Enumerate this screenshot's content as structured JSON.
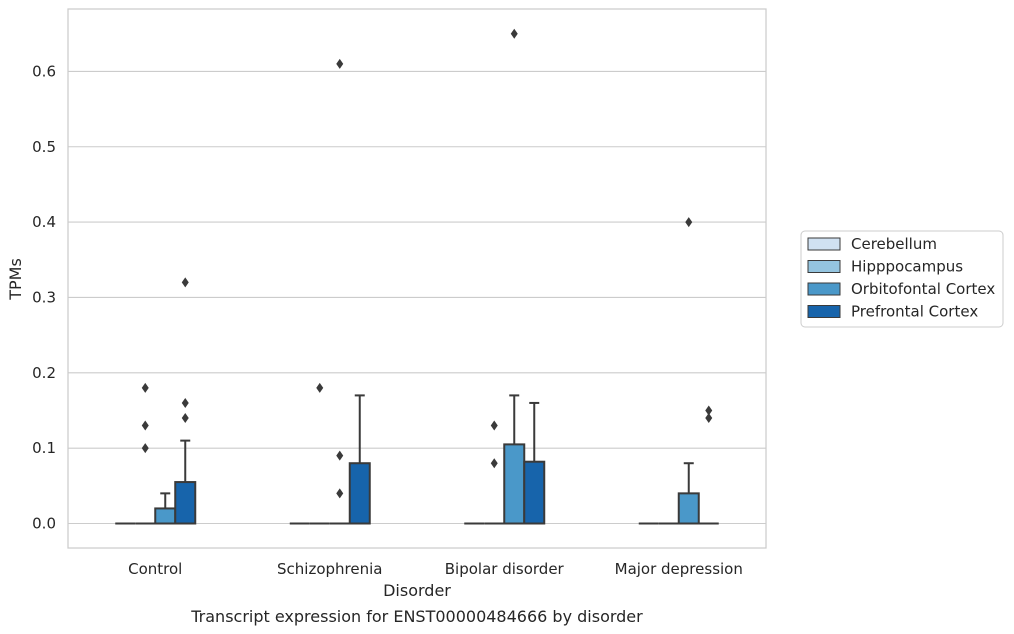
{
  "chart_data": {
    "type": "box",
    "xlabel": "Disorder",
    "ylabel": "TPMs",
    "caption": "Transcript expression for ENST00000484666 by disorder",
    "categories": [
      "Control",
      "Schizophrenia",
      "Bipolar disorder",
      "Major depression"
    ],
    "ylim": [
      -0.032,
      0.685
    ],
    "yticks": [
      0.0,
      0.1,
      0.2,
      0.3,
      0.4,
      0.5,
      0.6
    ],
    "ytick_labels": [
      "0.0",
      "0.1",
      "0.2",
      "0.3",
      "0.4",
      "0.5",
      "0.6"
    ],
    "grid": "horizontal",
    "legend_position": "center-right",
    "series": [
      {
        "name": "Cerebellum",
        "color": "#d0e1f2",
        "boxes": [
          {
            "q1": 0,
            "median": 0,
            "q3": 0,
            "whisker_low": 0,
            "whisker_high": 0,
            "outliers": []
          },
          {
            "q1": 0,
            "median": 0,
            "q3": 0,
            "whisker_low": 0,
            "whisker_high": 0,
            "outliers": []
          },
          {
            "q1": 0,
            "median": 0,
            "q3": 0,
            "whisker_low": 0,
            "whisker_high": 0,
            "outliers": []
          },
          {
            "q1": 0,
            "median": 0,
            "q3": 0,
            "whisker_low": 0,
            "whisker_high": 0,
            "outliers": []
          }
        ]
      },
      {
        "name": "Hipppocampus",
        "color": "#94c4df",
        "boxes": [
          {
            "q1": 0,
            "median": 0,
            "q3": 0,
            "whisker_low": 0,
            "whisker_high": 0,
            "outliers": [
              0.1,
              0.13,
              0.18
            ]
          },
          {
            "q1": 0,
            "median": 0,
            "q3": 0,
            "whisker_low": 0,
            "whisker_high": 0,
            "outliers": [
              0.18
            ]
          },
          {
            "q1": 0,
            "median": 0,
            "q3": 0,
            "whisker_low": 0,
            "whisker_high": 0,
            "outliers": [
              0.08,
              0.13
            ]
          },
          {
            "q1": 0,
            "median": 0,
            "q3": 0,
            "whisker_low": 0,
            "whisker_high": 0,
            "outliers": []
          }
        ]
      },
      {
        "name": "Orbitofontal Cortex",
        "color": "#4a98c9",
        "boxes": [
          {
            "q1": 0,
            "median": 0,
            "q3": 0.02,
            "whisker_low": 0,
            "whisker_high": 0.04,
            "outliers": []
          },
          {
            "q1": 0,
            "median": 0,
            "q3": 0,
            "whisker_low": 0,
            "whisker_high": 0,
            "outliers": [
              0.04,
              0.09,
              0.61
            ]
          },
          {
            "q1": 0,
            "median": 0,
            "q3": 0.105,
            "whisker_low": 0,
            "whisker_high": 0.17,
            "outliers": [
              0.65
            ]
          },
          {
            "q1": 0,
            "median": 0,
            "q3": 0.04,
            "whisker_low": 0,
            "whisker_high": 0.08,
            "outliers": [
              0.4
            ]
          }
        ]
      },
      {
        "name": "Prefrontal Cortex",
        "color": "#1764ab",
        "boxes": [
          {
            "q1": 0,
            "median": 0,
            "q3": 0.055,
            "whisker_low": 0,
            "whisker_high": 0.11,
            "outliers": [
              0.14,
              0.16,
              0.32
            ]
          },
          {
            "q1": 0,
            "median": 0,
            "q3": 0.08,
            "whisker_low": 0,
            "whisker_high": 0.17,
            "outliers": []
          },
          {
            "q1": 0,
            "median": 0,
            "q3": 0.082,
            "whisker_low": 0,
            "whisker_high": 0.16,
            "outliers": []
          },
          {
            "q1": 0,
            "median": 0,
            "q3": 0,
            "whisker_low": 0,
            "whisker_high": 0,
            "outliers": [
              0.14,
              0.15
            ]
          }
        ]
      }
    ]
  }
}
